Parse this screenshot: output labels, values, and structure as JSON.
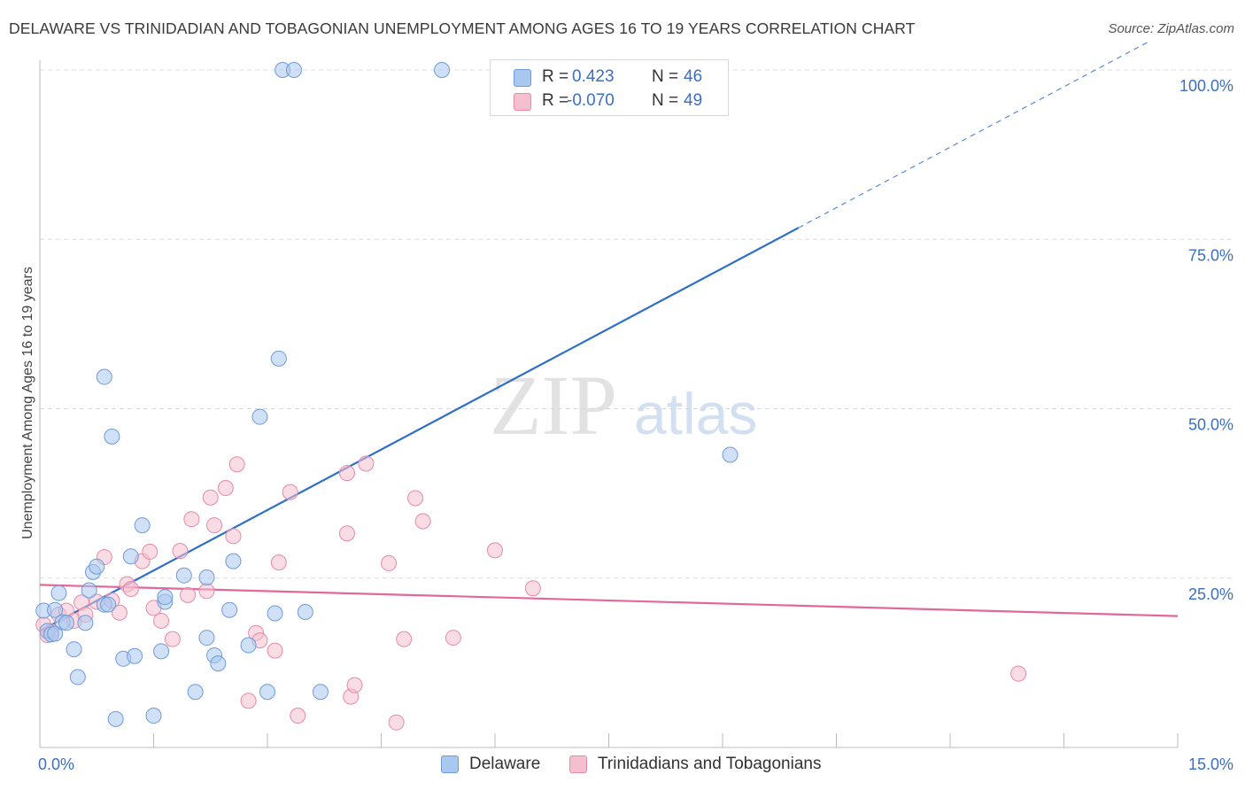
{
  "title": "DELAWARE VS TRINIDADIAN AND TOBAGONIAN UNEMPLOYMENT AMONG AGES 16 TO 19 YEARS CORRELATION CHART",
  "source": "Source: ZipAtlas.com",
  "watermark": {
    "zip": "ZIP",
    "atlas": "atlas"
  },
  "legend": {
    "rows": [
      {
        "r_label": "R =",
        "r_value": "0.423",
        "n_label": "N =",
        "n_value": "46"
      },
      {
        "r_label": "R =",
        "r_value": "-0.070",
        "n_label": "N =",
        "n_value": "49"
      }
    ]
  },
  "colors": {
    "delaware_fill": "#a9c8f0",
    "delaware_stroke": "#6f9bd6",
    "delaware_line": "#2e6fc9",
    "trinidad_fill": "#f6bfd0",
    "trinidad_stroke": "#e58aa8",
    "trinidad_line": "#e2679a",
    "tick_label": "#3a6fc4",
    "grid": "#dcdcdc"
  },
  "chart_data": {
    "type": "scatter",
    "title": "DELAWARE VS TRINIDADIAN AND TOBAGONIAN UNEMPLOYMENT AMONG AGES 16 TO 19 YEARS CORRELATION CHART",
    "xlabel": "",
    "ylabel": "Unemployment Among Ages 16 to 19 years",
    "xlim": [
      0,
      15
    ],
    "ylim": [
      0,
      100
    ],
    "x_tick_labels": [
      "0.0%",
      "15.0%"
    ],
    "y_ticks": [
      25,
      50,
      75,
      100
    ],
    "y_tick_labels": [
      "25.0%",
      "50.0%",
      "75.0%",
      "100.0%"
    ],
    "grid": true,
    "legend_position": "bottom",
    "series": [
      {
        "name": "Delaware",
        "r": 0.423,
        "n": 46,
        "trend": {
          "x0": 0.0,
          "y0": 17.2,
          "x1": 10.0,
          "y1": 76.7,
          "dashed_to_x": 14.6
        },
        "points": [
          [
            0.05,
            20.2
          ],
          [
            0.1,
            17.2
          ],
          [
            0.15,
            16.7
          ],
          [
            0.2,
            16.8
          ],
          [
            0.2,
            20.3
          ],
          [
            0.25,
            22.8
          ],
          [
            0.3,
            18.5
          ],
          [
            0.35,
            18.4
          ],
          [
            0.45,
            14.5
          ],
          [
            0.5,
            10.4
          ],
          [
            0.6,
            18.4
          ],
          [
            0.65,
            23.2
          ],
          [
            0.7,
            25.9
          ],
          [
            0.75,
            26.7
          ],
          [
            0.85,
            21.1
          ],
          [
            0.85,
            54.7
          ],
          [
            0.9,
            21.1
          ],
          [
            0.95,
            45.9
          ],
          [
            1.0,
            4.2
          ],
          [
            1.1,
            13.1
          ],
          [
            1.2,
            28.2
          ],
          [
            1.25,
            13.5
          ],
          [
            1.35,
            32.8
          ],
          [
            1.5,
            4.7
          ],
          [
            1.6,
            14.2
          ],
          [
            1.65,
            21.5
          ],
          [
            1.65,
            22.2
          ],
          [
            1.9,
            25.4
          ],
          [
            2.05,
            8.2
          ],
          [
            2.2,
            25.1
          ],
          [
            2.2,
            16.2
          ],
          [
            2.3,
            13.6
          ],
          [
            2.35,
            12.4
          ],
          [
            2.5,
            20.3
          ],
          [
            2.55,
            27.5
          ],
          [
            2.75,
            15.1
          ],
          [
            2.9,
            48.8
          ],
          [
            3.0,
            8.2
          ],
          [
            3.1,
            19.8
          ],
          [
            3.15,
            57.4
          ],
          [
            3.2,
            100.0
          ],
          [
            3.35,
            100.0
          ],
          [
            3.5,
            20.0
          ],
          [
            3.7,
            8.2
          ],
          [
            5.3,
            100.0
          ],
          [
            9.1,
            43.2
          ]
        ]
      },
      {
        "name": "Trinidadians and Tobagonians",
        "r": -0.07,
        "n": 49,
        "trend": {
          "x0": 0.0,
          "y0": 24.0,
          "x1": 15.0,
          "y1": 19.4
        },
        "points": [
          [
            0.05,
            18.1
          ],
          [
            0.1,
            16.6
          ],
          [
            0.15,
            17.1
          ],
          [
            0.25,
            19.6
          ],
          [
            0.35,
            20.2
          ],
          [
            0.45,
            18.7
          ],
          [
            0.55,
            21.4
          ],
          [
            0.6,
            19.6
          ],
          [
            0.75,
            21.5
          ],
          [
            0.85,
            28.1
          ],
          [
            0.95,
            21.7
          ],
          [
            1.05,
            19.9
          ],
          [
            1.15,
            24.1
          ],
          [
            1.2,
            23.4
          ],
          [
            1.35,
            27.5
          ],
          [
            1.45,
            28.9
          ],
          [
            1.5,
            20.6
          ],
          [
            1.6,
            18.7
          ],
          [
            1.75,
            16.0
          ],
          [
            1.85,
            29.0
          ],
          [
            1.95,
            22.5
          ],
          [
            2.0,
            33.7
          ],
          [
            2.2,
            23.1
          ],
          [
            2.25,
            36.9
          ],
          [
            2.3,
            32.8
          ],
          [
            2.45,
            38.3
          ],
          [
            2.55,
            31.2
          ],
          [
            2.6,
            41.8
          ],
          [
            2.75,
            6.9
          ],
          [
            2.85,
            16.9
          ],
          [
            2.9,
            15.8
          ],
          [
            3.1,
            14.3
          ],
          [
            3.15,
            27.3
          ],
          [
            3.3,
            37.7
          ],
          [
            3.4,
            4.7
          ],
          [
            4.05,
            40.5
          ],
          [
            4.05,
            31.6
          ],
          [
            4.1,
            7.5
          ],
          [
            4.15,
            9.2
          ],
          [
            4.3,
            41.9
          ],
          [
            4.6,
            27.2
          ],
          [
            4.7,
            3.7
          ],
          [
            4.8,
            16.0
          ],
          [
            4.95,
            36.8
          ],
          [
            5.05,
            33.4
          ],
          [
            5.45,
            16.2
          ],
          [
            6.0,
            29.1
          ],
          [
            6.5,
            23.5
          ],
          [
            12.9,
            10.9
          ]
        ]
      }
    ]
  },
  "bottom_legend": [
    "Delaware",
    "Trinidadians and Tobagonians"
  ]
}
